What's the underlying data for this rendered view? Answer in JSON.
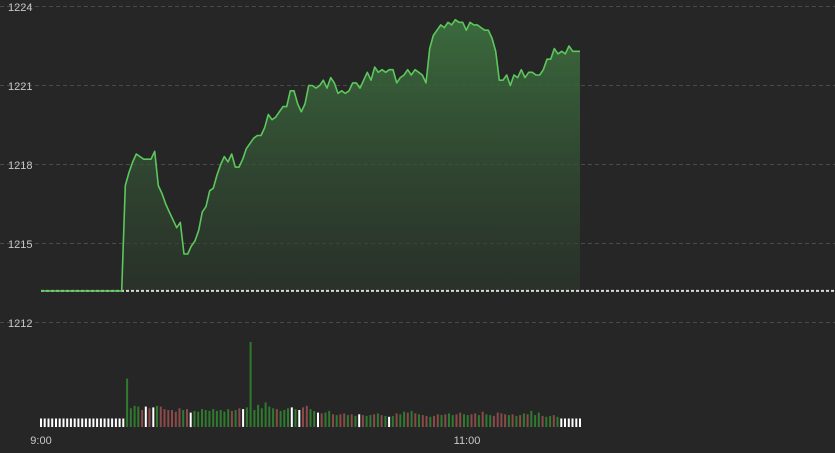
{
  "chart_data": {
    "type": "line",
    "title": "",
    "xlabel": "",
    "ylabel": "",
    "y_ticks": [
      "1224",
      "1221",
      "1218",
      "1215",
      "1212"
    ],
    "x_ticks": [
      "9:00",
      "11:00"
    ],
    "ylim": [
      1212,
      1224
    ],
    "reference_value": 1213.2,
    "grid": true,
    "colors": {
      "price_line": "#5cc85c",
      "reference_line": "#d9d9d9",
      "volume_up": "#2f7a2f",
      "volume_down": "#8a4a4a",
      "volume_neutral": "#ffffff"
    },
    "series": [
      {
        "values": [
          1213.2,
          1213.2,
          1213.2,
          1213.2,
          1213.2,
          1213.2,
          1213.2,
          1213.2,
          1213.2,
          1213.2,
          1213.2,
          1213.2,
          1213.2,
          1213.2,
          1213.2,
          1213.2,
          1213.2,
          1213.2,
          1213.2,
          1213.2,
          1213.2,
          1213.2,
          1213.2,
          1217.2,
          1217.7,
          1218.1,
          1218.4,
          1218.3,
          1218.2,
          1218.2,
          1218.2,
          1218.5,
          1217.2,
          1216.9,
          1216.5,
          1216.2,
          1215.9,
          1215.6,
          1215.8,
          1214.6,
          1214.6,
          1214.9,
          1215.1,
          1215.5,
          1216.2,
          1216.4,
          1217.0,
          1217.1,
          1217.6,
          1218.0,
          1218.3,
          1218.1,
          1218.4,
          1217.9,
          1217.9,
          1218.2,
          1218.6,
          1218.8,
          1219.0,
          1219.1,
          1219.1,
          1219.4,
          1219.9,
          1219.7,
          1219.8,
          1220.0,
          1220.2,
          1220.2,
          1220.8,
          1220.8,
          1220.3,
          1220.0,
          1220.3,
          1221.0,
          1221.0,
          1220.9,
          1221.0,
          1221.2,
          1220.9,
          1221.3,
          1221.1,
          1220.7,
          1220.8,
          1220.7,
          1220.8,
          1221.1,
          1221.1,
          1220.9,
          1221.2,
          1221.5,
          1221.2,
          1221.7,
          1221.5,
          1221.6,
          1221.5,
          1221.6,
          1221.6,
          1221.1,
          1221.3,
          1221.4,
          1221.6,
          1221.4,
          1221.6,
          1221.5,
          1221.4,
          1221.1,
          1222.4,
          1222.9,
          1223.1,
          1223.3,
          1223.2,
          1223.4,
          1223.3,
          1223.5,
          1223.4,
          1223.4,
          1223.1,
          1223.4,
          1223.3,
          1223.3,
          1223.2,
          1223.1,
          1223.1,
          1222.8,
          1222.3,
          1221.2,
          1221.2,
          1221.4,
          1221.0,
          1221.4,
          1221.3,
          1221.6,
          1221.3,
          1221.5,
          1221.5,
          1221.4,
          1221.4,
          1221.6,
          1222.0,
          1222.0,
          1222.4,
          1222.2,
          1222.3,
          1222.2,
          1222.5,
          1222.3,
          1222.3,
          1222.3
        ]
      }
    ],
    "volume": [
      {
        "v": 0.1,
        "d": "flat"
      },
      {
        "v": 0.1,
        "d": "flat"
      },
      {
        "v": 0.1,
        "d": "flat"
      },
      {
        "v": 0.1,
        "d": "flat"
      },
      {
        "v": 0.1,
        "d": "flat"
      },
      {
        "v": 0.1,
        "d": "flat"
      },
      {
        "v": 0.1,
        "d": "flat"
      },
      {
        "v": 0.1,
        "d": "flat"
      },
      {
        "v": 0.1,
        "d": "flat"
      },
      {
        "v": 0.1,
        "d": "flat"
      },
      {
        "v": 0.1,
        "d": "flat"
      },
      {
        "v": 0.1,
        "d": "flat"
      },
      {
        "v": 0.1,
        "d": "flat"
      },
      {
        "v": 0.1,
        "d": "flat"
      },
      {
        "v": 0.1,
        "d": "flat"
      },
      {
        "v": 0.1,
        "d": "flat"
      },
      {
        "v": 0.1,
        "d": "flat"
      },
      {
        "v": 0.1,
        "d": "flat"
      },
      {
        "v": 0.1,
        "d": "flat"
      },
      {
        "v": 0.1,
        "d": "flat"
      },
      {
        "v": 0.1,
        "d": "flat"
      },
      {
        "v": 0.1,
        "d": "flat"
      },
      {
        "v": 0.1,
        "d": "flat"
      },
      {
        "v": 0.57,
        "d": "up"
      },
      {
        "v": 0.22,
        "d": "up"
      },
      {
        "v": 0.25,
        "d": "up"
      },
      {
        "v": 0.24,
        "d": "up"
      },
      {
        "v": 0.2,
        "d": "down"
      },
      {
        "v": 0.24,
        "d": "flat"
      },
      {
        "v": 0.22,
        "d": "down"
      },
      {
        "v": 0.23,
        "d": "flat"
      },
      {
        "v": 0.25,
        "d": "up"
      },
      {
        "v": 0.24,
        "d": "down"
      },
      {
        "v": 0.21,
        "d": "down"
      },
      {
        "v": 0.2,
        "d": "down"
      },
      {
        "v": 0.2,
        "d": "down"
      },
      {
        "v": 0.18,
        "d": "down"
      },
      {
        "v": 0.22,
        "d": "down"
      },
      {
        "v": 0.2,
        "d": "up"
      },
      {
        "v": 0.21,
        "d": "down"
      },
      {
        "v": 0.17,
        "d": "flat"
      },
      {
        "v": 0.19,
        "d": "up"
      },
      {
        "v": 0.18,
        "d": "up"
      },
      {
        "v": 0.21,
        "d": "up"
      },
      {
        "v": 0.2,
        "d": "up"
      },
      {
        "v": 0.19,
        "d": "up"
      },
      {
        "v": 0.21,
        "d": "up"
      },
      {
        "v": 0.19,
        "d": "up"
      },
      {
        "v": 0.2,
        "d": "up"
      },
      {
        "v": 0.18,
        "d": "up"
      },
      {
        "v": 0.21,
        "d": "up"
      },
      {
        "v": 0.19,
        "d": "down"
      },
      {
        "v": 0.2,
        "d": "up"
      },
      {
        "v": 0.22,
        "d": "down"
      },
      {
        "v": 0.21,
        "d": "flat"
      },
      {
        "v": 0.23,
        "d": "up"
      },
      {
        "v": 1.0,
        "d": "up"
      },
      {
        "v": 0.2,
        "d": "up"
      },
      {
        "v": 0.26,
        "d": "up"
      },
      {
        "v": 0.22,
        "d": "up"
      },
      {
        "v": 0.29,
        "d": "up"
      },
      {
        "v": 0.24,
        "d": "up"
      },
      {
        "v": 0.22,
        "d": "up"
      },
      {
        "v": 0.21,
        "d": "down"
      },
      {
        "v": 0.19,
        "d": "up"
      },
      {
        "v": 0.2,
        "d": "up"
      },
      {
        "v": 0.22,
        "d": "up"
      },
      {
        "v": 0.23,
        "d": "flat"
      },
      {
        "v": 0.21,
        "d": "up"
      },
      {
        "v": 0.2,
        "d": "flat"
      },
      {
        "v": 0.23,
        "d": "down"
      },
      {
        "v": 0.25,
        "d": "down"
      },
      {
        "v": 0.21,
        "d": "up"
      },
      {
        "v": 0.19,
        "d": "up"
      },
      {
        "v": 0.17,
        "d": "flat"
      },
      {
        "v": 0.16,
        "d": "down"
      },
      {
        "v": 0.17,
        "d": "up"
      },
      {
        "v": 0.19,
        "d": "up"
      },
      {
        "v": 0.15,
        "d": "down"
      },
      {
        "v": 0.14,
        "d": "up"
      },
      {
        "v": 0.15,
        "d": "down"
      },
      {
        "v": 0.16,
        "d": "down"
      },
      {
        "v": 0.14,
        "d": "up"
      },
      {
        "v": 0.15,
        "d": "down"
      },
      {
        "v": 0.13,
        "d": "up"
      },
      {
        "v": 0.15,
        "d": "flat"
      },
      {
        "v": 0.14,
        "d": "down"
      },
      {
        "v": 0.13,
        "d": "up"
      },
      {
        "v": 0.14,
        "d": "up"
      },
      {
        "v": 0.15,
        "d": "down"
      },
      {
        "v": 0.16,
        "d": "up"
      },
      {
        "v": 0.14,
        "d": "down"
      },
      {
        "v": 0.13,
        "d": "up"
      },
      {
        "v": 0.12,
        "d": "flat"
      },
      {
        "v": 0.13,
        "d": "up"
      },
      {
        "v": 0.16,
        "d": "down"
      },
      {
        "v": 0.15,
        "d": "up"
      },
      {
        "v": 0.18,
        "d": "up"
      },
      {
        "v": 0.17,
        "d": "down"
      },
      {
        "v": 0.19,
        "d": "up"
      },
      {
        "v": 0.16,
        "d": "down"
      },
      {
        "v": 0.15,
        "d": "up"
      },
      {
        "v": 0.14,
        "d": "down"
      },
      {
        "v": 0.13,
        "d": "down"
      },
      {
        "v": 0.12,
        "d": "up"
      },
      {
        "v": 0.13,
        "d": "down"
      },
      {
        "v": 0.15,
        "d": "down"
      },
      {
        "v": 0.14,
        "d": "up"
      },
      {
        "v": 0.15,
        "d": "down"
      },
      {
        "v": 0.16,
        "d": "up"
      },
      {
        "v": 0.14,
        "d": "up"
      },
      {
        "v": 0.15,
        "d": "down"
      },
      {
        "v": 0.17,
        "d": "down"
      },
      {
        "v": 0.15,
        "d": "up"
      },
      {
        "v": 0.14,
        "d": "up"
      },
      {
        "v": 0.15,
        "d": "down"
      },
      {
        "v": 0.16,
        "d": "down"
      },
      {
        "v": 0.14,
        "d": "up"
      },
      {
        "v": 0.18,
        "d": "down"
      },
      {
        "v": 0.15,
        "d": "up"
      },
      {
        "v": 0.14,
        "d": "up"
      },
      {
        "v": 0.13,
        "d": "down"
      },
      {
        "v": 0.17,
        "d": "down"
      },
      {
        "v": 0.16,
        "d": "down"
      },
      {
        "v": 0.15,
        "d": "down"
      },
      {
        "v": 0.14,
        "d": "up"
      },
      {
        "v": 0.15,
        "d": "down"
      },
      {
        "v": 0.13,
        "d": "up"
      },
      {
        "v": 0.14,
        "d": "down"
      },
      {
        "v": 0.16,
        "d": "up"
      },
      {
        "v": 0.15,
        "d": "down"
      },
      {
        "v": 0.19,
        "d": "up"
      },
      {
        "v": 0.14,
        "d": "up"
      },
      {
        "v": 0.17,
        "d": "up"
      },
      {
        "v": 0.13,
        "d": "down"
      },
      {
        "v": 0.12,
        "d": "up"
      },
      {
        "v": 0.13,
        "d": "up"
      },
      {
        "v": 0.14,
        "d": "down"
      },
      {
        "v": 0.12,
        "d": "up"
      },
      {
        "v": 0.1,
        "d": "flat"
      },
      {
        "v": 0.1,
        "d": "flat"
      },
      {
        "v": 0.1,
        "d": "flat"
      },
      {
        "v": 0.1,
        "d": "flat"
      },
      {
        "v": 0.1,
        "d": "flat"
      },
      {
        "v": 0.1,
        "d": "flat"
      }
    ]
  }
}
